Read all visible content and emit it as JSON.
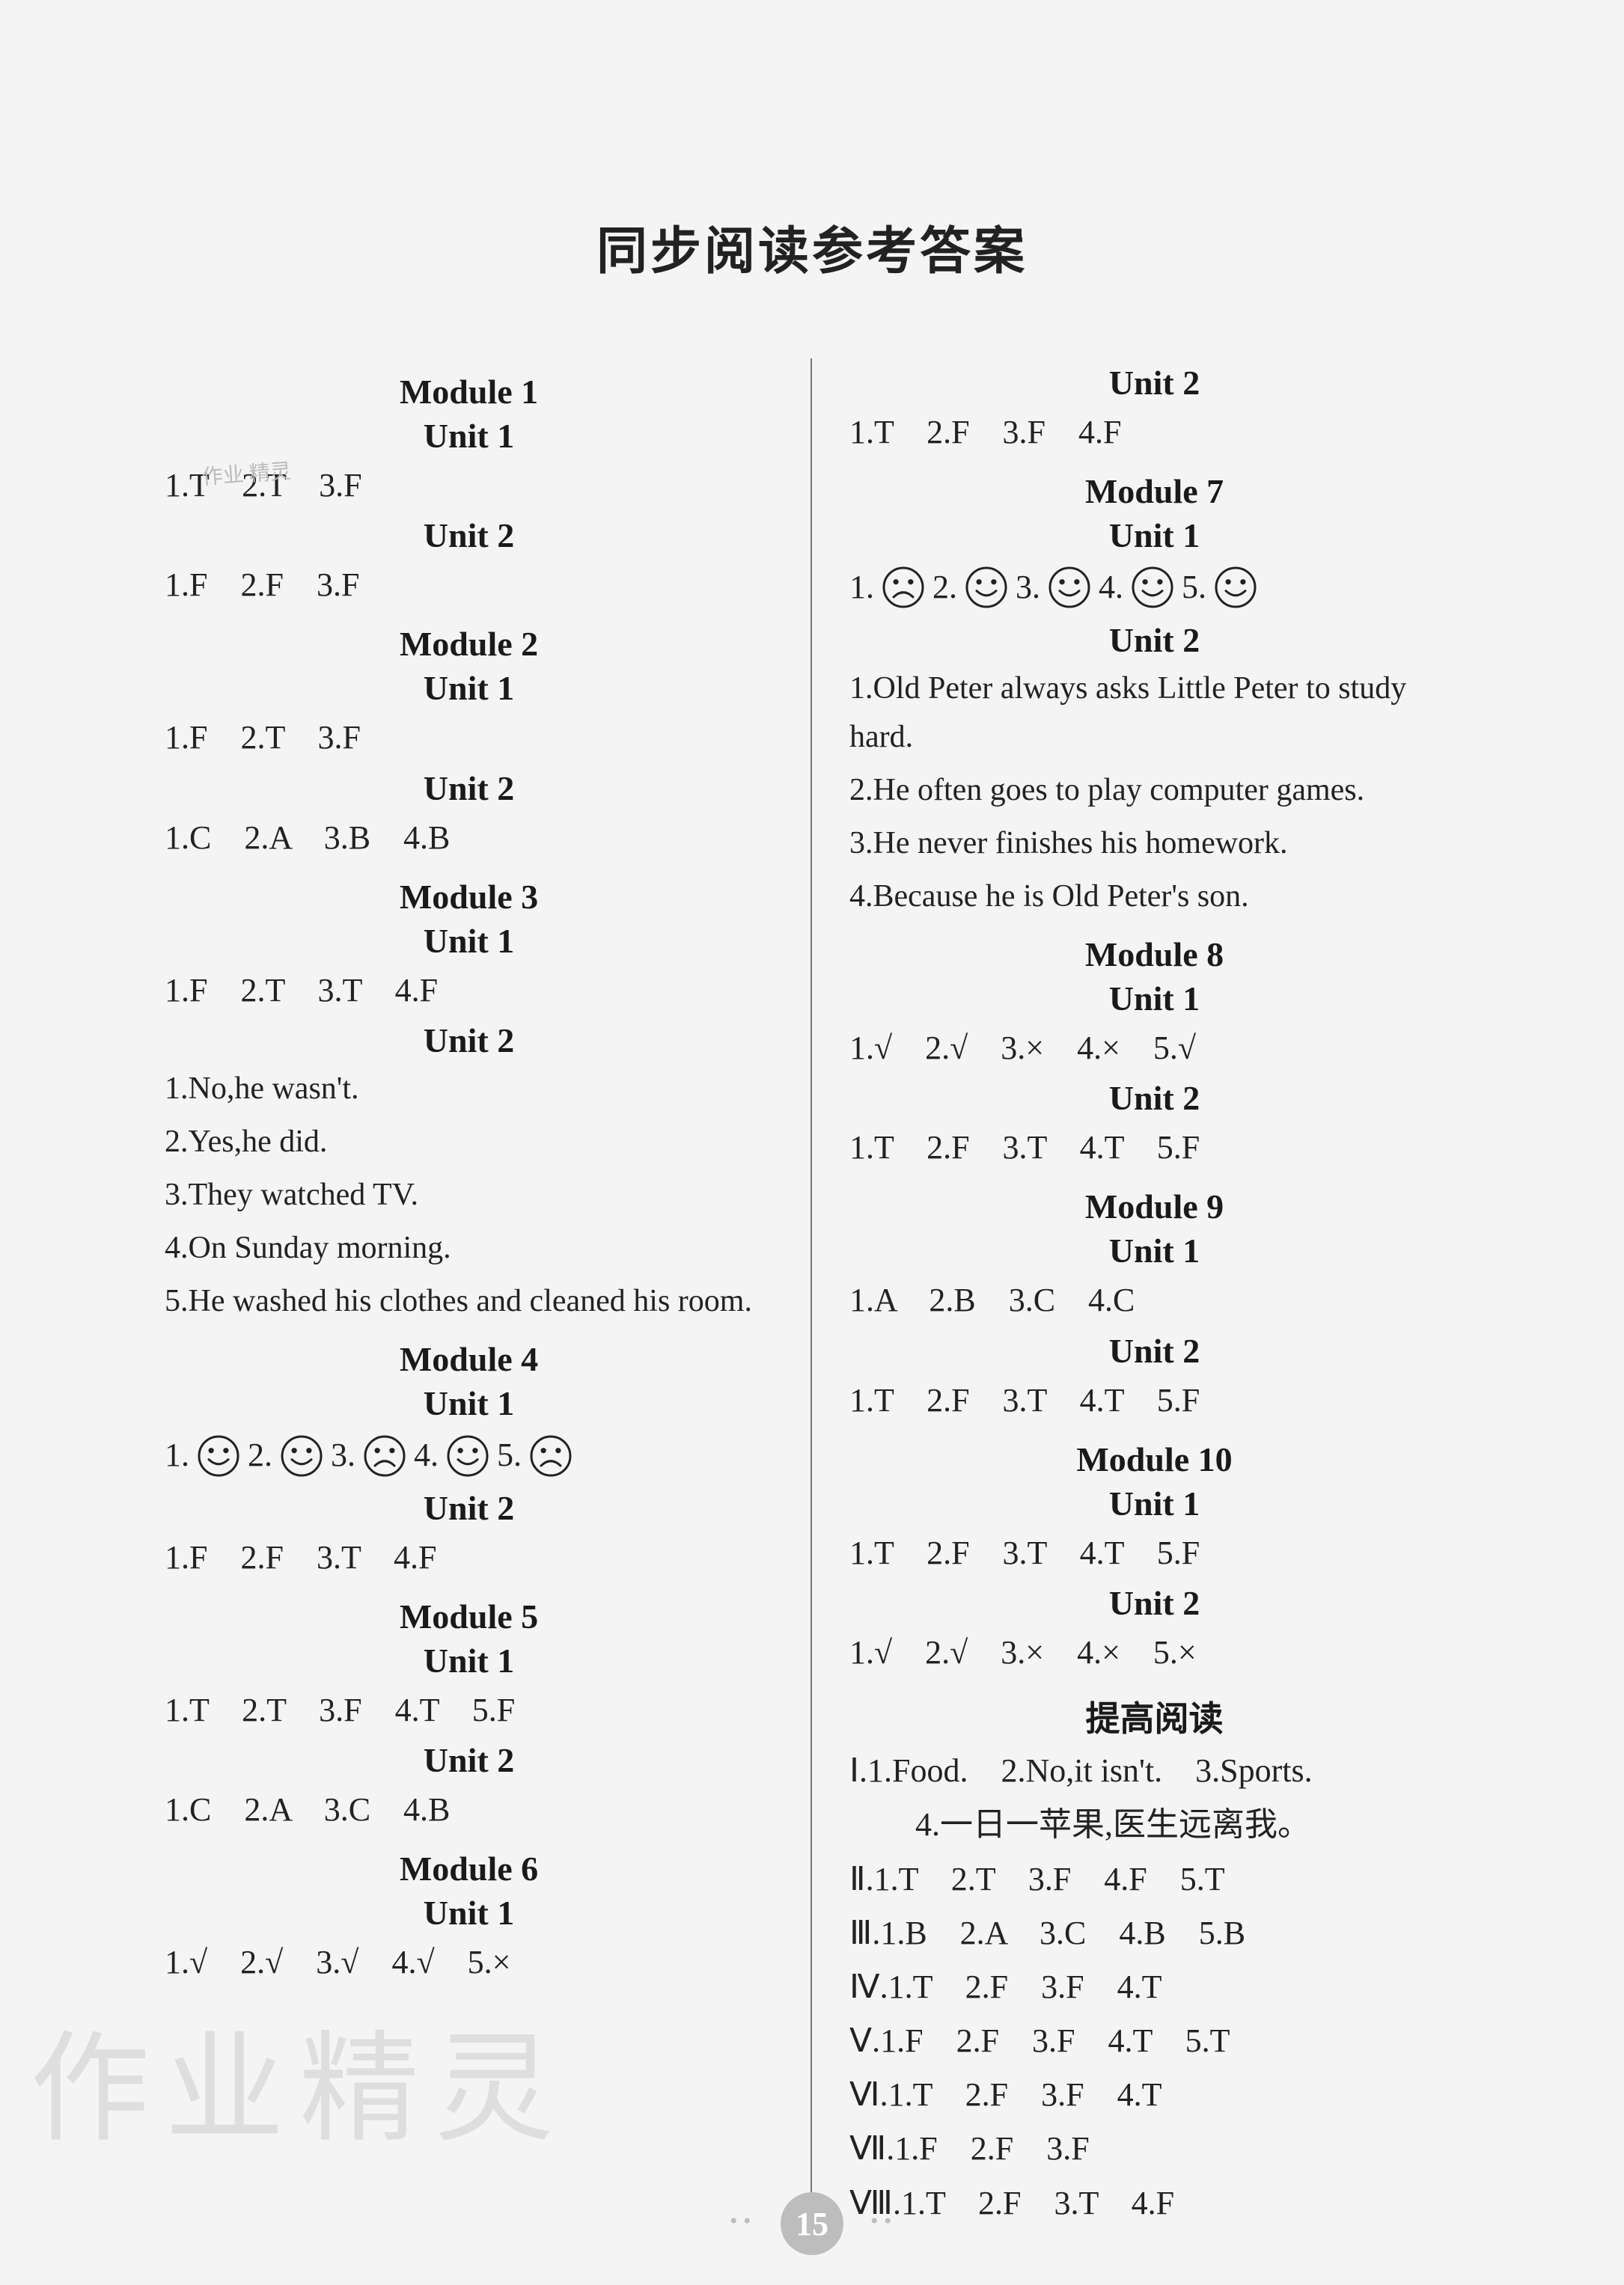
{
  "title": "同步阅读参考答案",
  "page_number": "15",
  "colors": {
    "bg": "#f4f4f4",
    "text": "#222222",
    "heading": "#1a1a1a",
    "divider": "#777777",
    "watermark": "rgba(120,120,120,0.18)",
    "pagenum_bg": "#bdbdbd",
    "pagenum_fg": "#ffffff"
  },
  "face_svg": {
    "r": 26,
    "stroke": "#222222",
    "stroke_width": 3
  },
  "left": {
    "m1": {
      "title": "Module 1",
      "u1": {
        "title": "Unit 1",
        "row": "1.T　2.T　3.F"
      },
      "u2": {
        "title": "Unit 2",
        "row": "1.F　2.F　3.F"
      }
    },
    "m2": {
      "title": "Module 2",
      "u1": {
        "title": "Unit 1",
        "row": "1.F　2.T　3.F"
      },
      "u2": {
        "title": "Unit 2",
        "row": "1.C　2.A　3.B　4.B"
      }
    },
    "m3": {
      "title": "Module 3",
      "u1": {
        "title": "Unit 1",
        "row": "1.F　2.T　3.T　4.F"
      },
      "u2": {
        "title": "Unit 2",
        "lines": [
          "1.No,he wasn't.",
          "2.Yes,he did.",
          "3.They watched TV.",
          "4.On Sunday morning.",
          "5.He washed his clothes and cleaned his room."
        ]
      }
    },
    "m4": {
      "title": "Module 4",
      "u1": {
        "title": "Unit 1",
        "faces": [
          "smile",
          "smile",
          "sad",
          "smile",
          "sad"
        ]
      },
      "u2": {
        "title": "Unit 2",
        "row": "1.F　2.F　3.T　4.F"
      }
    },
    "m5": {
      "title": "Module 5",
      "u1": {
        "title": "Unit 1",
        "row": "1.T　2.T　3.F　4.T　5.F"
      },
      "u2": {
        "title": "Unit 2",
        "row": "1.C　2.A　3.C　4.B"
      }
    },
    "m6": {
      "title": "Module 6",
      "u1": {
        "title": "Unit 1",
        "row": "1.√　2.√　3.√　4.√　5.×"
      }
    }
  },
  "right": {
    "u2top": {
      "title": "Unit 2",
      "row": "1.T　2.F　3.F　4.F"
    },
    "m7": {
      "title": "Module 7",
      "u1": {
        "title": "Unit 1",
        "faces": [
          "sad",
          "smile",
          "smile",
          "smile",
          "smile"
        ]
      },
      "u2": {
        "title": "Unit 2",
        "lines": [
          "1.Old Peter always asks Little Peter to study hard.",
          "2.He often goes to play computer games.",
          "3.He never finishes his homework.",
          "4.Because he is Old Peter's son."
        ]
      }
    },
    "m8": {
      "title": "Module 8",
      "u1": {
        "title": "Unit 1",
        "row": "1.√　2.√　3.×　4.×　5.√"
      },
      "u2": {
        "title": "Unit 2",
        "row": "1.T　2.F　3.T　4.T　5.F"
      }
    },
    "m9": {
      "title": "Module 9",
      "u1": {
        "title": "Unit 1",
        "row": "1.A　2.B　3.C　4.C"
      },
      "u2": {
        "title": "Unit 2",
        "row": "1.T　2.F　3.T　4.T　5.F"
      }
    },
    "m10": {
      "title": "Module 10",
      "u1": {
        "title": "Unit 1",
        "row": "1.T　2.F　3.T　4.T　5.F"
      },
      "u2": {
        "title": "Unit 2",
        "row": "1.√　2.√　3.×　4.×　5.×"
      }
    },
    "adv": {
      "title": "提高阅读",
      "I_lines": [
        "Ⅰ.1.Food.　2.No,it isn't.　3.Sports.",
        "　　4.一日一苹果,医生远离我。"
      ],
      "rows": {
        "II": "Ⅱ.1.T　2.T　3.F　4.F　5.T",
        "III": "Ⅲ.1.B　2.A　3.C　4.B　5.B",
        "IV": "Ⅳ.1.T　2.F　3.F　4.T",
        "V": "Ⅴ.1.F　2.F　3.F　4.T　5.T",
        "VI": "Ⅵ.1.T　2.F　3.F　4.T",
        "VII": "Ⅶ.1.F　2.F　3.F",
        "VIII": "Ⅷ.1.T　2.F　3.T　4.F"
      }
    }
  },
  "watermark_big": "作业精灵",
  "watermark_small": "作业\n精灵"
}
